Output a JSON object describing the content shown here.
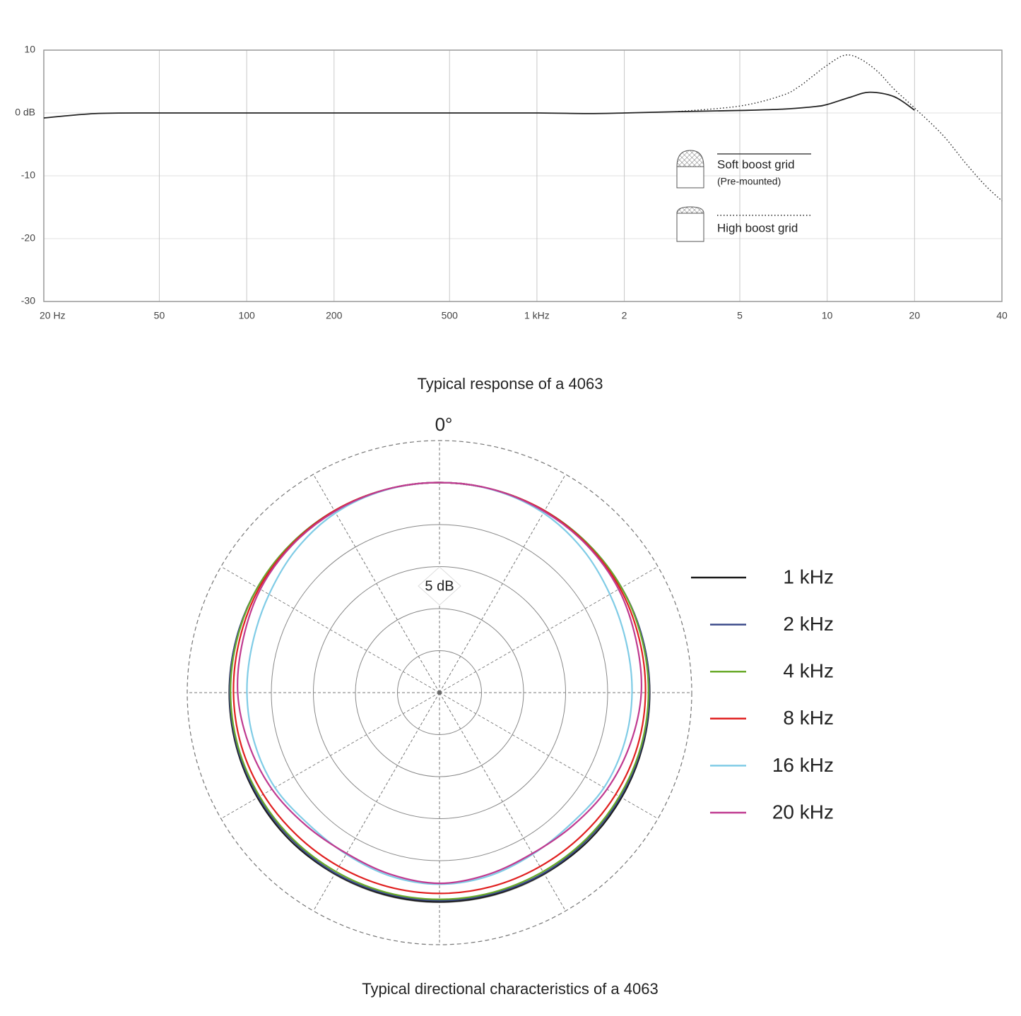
{
  "chart_data": [
    {
      "type": "line",
      "title": "Typical response of a 4063",
      "xscale": "log",
      "xlim": [
        20,
        40000
      ],
      "ylim": [
        -30,
        10
      ],
      "xticks": [
        {
          "value": 20,
          "label": "20 Hz"
        },
        50,
        100,
        200,
        500,
        {
          "value": 1000,
          "label": "1 kHz"
        },
        {
          "value": 2000,
          "label": "2"
        },
        {
          "value": 5000,
          "label": "5"
        },
        {
          "value": 10000,
          "label": "10"
        },
        {
          "value": 20000,
          "label": "20"
        },
        {
          "value": 40000,
          "label": "40"
        }
      ],
      "yticks": [
        10,
        {
          "value": 0,
          "label": "0 dB"
        },
        -10,
        -20,
        -30
      ],
      "grid": true,
      "series": [
        {
          "name": "Soft boost grid",
          "note": "(Pre-mounted)",
          "color": "#222222",
          "dash": "solid",
          "x": [
            20,
            30,
            50,
            100,
            200,
            500,
            1000,
            1500,
            2000,
            3000,
            5000,
            7000,
            9000,
            10000,
            12000,
            14000,
            17000,
            20000
          ],
          "values": [
            -0.8,
            -0.1,
            0,
            0,
            0,
            0,
            0,
            -0.1,
            0,
            0.2,
            0.4,
            0.6,
            1.0,
            1.35,
            2.5,
            3.3,
            2.6,
            0.45
          ]
        },
        {
          "name": "High boost grid",
          "color": "#222222",
          "dash": "dotted",
          "x": [
            3000,
            5000,
            7000,
            8000,
            9000,
            10000,
            11500,
            13000,
            15000,
            17000,
            20000,
            25000,
            30000,
            35000,
            40000
          ],
          "values": [
            0.2,
            1.1,
            2.8,
            4.2,
            6.0,
            7.6,
            9.2,
            8.6,
            6.5,
            3.8,
            0.8,
            -3.5,
            -8,
            -11.5,
            -14
          ]
        }
      ]
    },
    {
      "type": "polar",
      "title": "Typical directional characteristics of a 4063",
      "theta_label": "0°",
      "annotation": "5 dB",
      "rlim": [
        -25,
        5
      ],
      "rticks": [
        -20,
        -15,
        -10,
        -5,
        0
      ],
      "thetaticks": [
        0,
        30,
        60,
        90,
        120,
        150,
        180,
        210,
        240,
        270,
        300,
        330
      ],
      "theta": [
        0,
        15,
        30,
        45,
        60,
        75,
        90,
        105,
        120,
        135,
        150,
        165,
        180,
        195,
        210,
        225,
        240,
        255,
        270,
        285,
        300,
        315,
        330,
        345
      ],
      "series": [
        {
          "name": "1 kHz",
          "color": "#1a1a1a",
          "values": [
            0,
            0,
            0,
            0,
            0,
            0,
            0,
            0,
            0,
            0,
            -0.1,
            -0.1,
            -0.1,
            -0.1,
            -0.1,
            0,
            0,
            0,
            0,
            0,
            0,
            0,
            0,
            0
          ]
        },
        {
          "name": "2 kHz",
          "color": "#3b4a8a",
          "values": [
            0,
            0,
            0,
            0,
            0,
            0,
            -0.05,
            -0.1,
            -0.15,
            -0.2,
            -0.2,
            -0.25,
            -0.25,
            -0.25,
            -0.2,
            -0.2,
            -0.15,
            -0.1,
            -0.05,
            0,
            0,
            0,
            0,
            0
          ]
        },
        {
          "name": "4 kHz",
          "color": "#6aaa2a",
          "values": [
            0,
            0,
            0,
            0,
            0,
            -0.1,
            -0.15,
            -0.2,
            -0.3,
            -0.35,
            -0.4,
            -0.4,
            -0.4,
            -0.4,
            -0.4,
            -0.35,
            -0.3,
            -0.2,
            -0.15,
            -0.1,
            0,
            0,
            0,
            0
          ]
        },
        {
          "name": "8 kHz",
          "color": "#e02020",
          "values": [
            0,
            0,
            0,
            -0.1,
            -0.2,
            -0.4,
            -0.5,
            -0.6,
            -0.8,
            -1.0,
            -1.1,
            -1.1,
            -1.1,
            -1.1,
            -1.1,
            -1.0,
            -0.8,
            -0.6,
            -0.5,
            -0.4,
            -0.2,
            -0.1,
            0,
            0
          ]
        },
        {
          "name": "16 kHz",
          "color": "#80cce6",
          "values": [
            0,
            -0.05,
            -0.3,
            -0.9,
            -1.6,
            -2.0,
            -2.1,
            -2.2,
            -2.4,
            -2.9,
            -2.8,
            -2.4,
            -2.2,
            -2.4,
            -2.8,
            -2.9,
            -2.4,
            -2.2,
            -2.1,
            -2.0,
            -1.6,
            -0.9,
            -0.3,
            -0.05
          ]
        },
        {
          "name": "20 kHz",
          "color": "#c03a90",
          "values": [
            0,
            0,
            -0.1,
            -0.2,
            -0.4,
            -0.8,
            -1.0,
            -1.5,
            -2.0,
            -2.6,
            -2.9,
            -2.6,
            -2.3,
            -2.6,
            -2.9,
            -2.6,
            -2.0,
            -1.5,
            -1.0,
            -0.8,
            -0.4,
            -0.2,
            -0.1,
            0
          ]
        }
      ]
    }
  ]
}
